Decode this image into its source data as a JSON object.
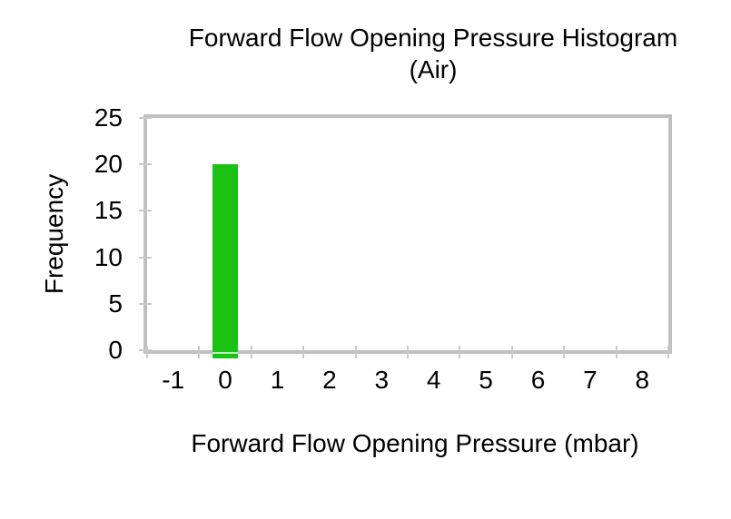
{
  "chart_data": {
    "type": "bar",
    "title": "Forward Flow Opening Pressure Histogram (Air)",
    "title_line1": "Forward Flow Opening Pressure Histogram",
    "title_line2": "(Air)",
    "xlabel": "Forward Flow Opening Pressure (mbar)",
    "ylabel": "Frequency",
    "categories": [
      "-1",
      "0",
      "1",
      "2",
      "3",
      "4",
      "5",
      "6",
      "7",
      "8"
    ],
    "values": [
      0,
      20,
      0,
      0,
      0,
      0,
      0,
      0,
      0,
      0
    ],
    "ylim": [
      0,
      25
    ],
    "yticks": [
      0,
      5,
      10,
      15,
      20,
      25
    ],
    "grid": false,
    "legend": "none",
    "bar_color": "#1ac214",
    "axis_frame_color": "#c0c0c0",
    "tick_color": "#c9c9c9",
    "text_color": "#000000"
  }
}
